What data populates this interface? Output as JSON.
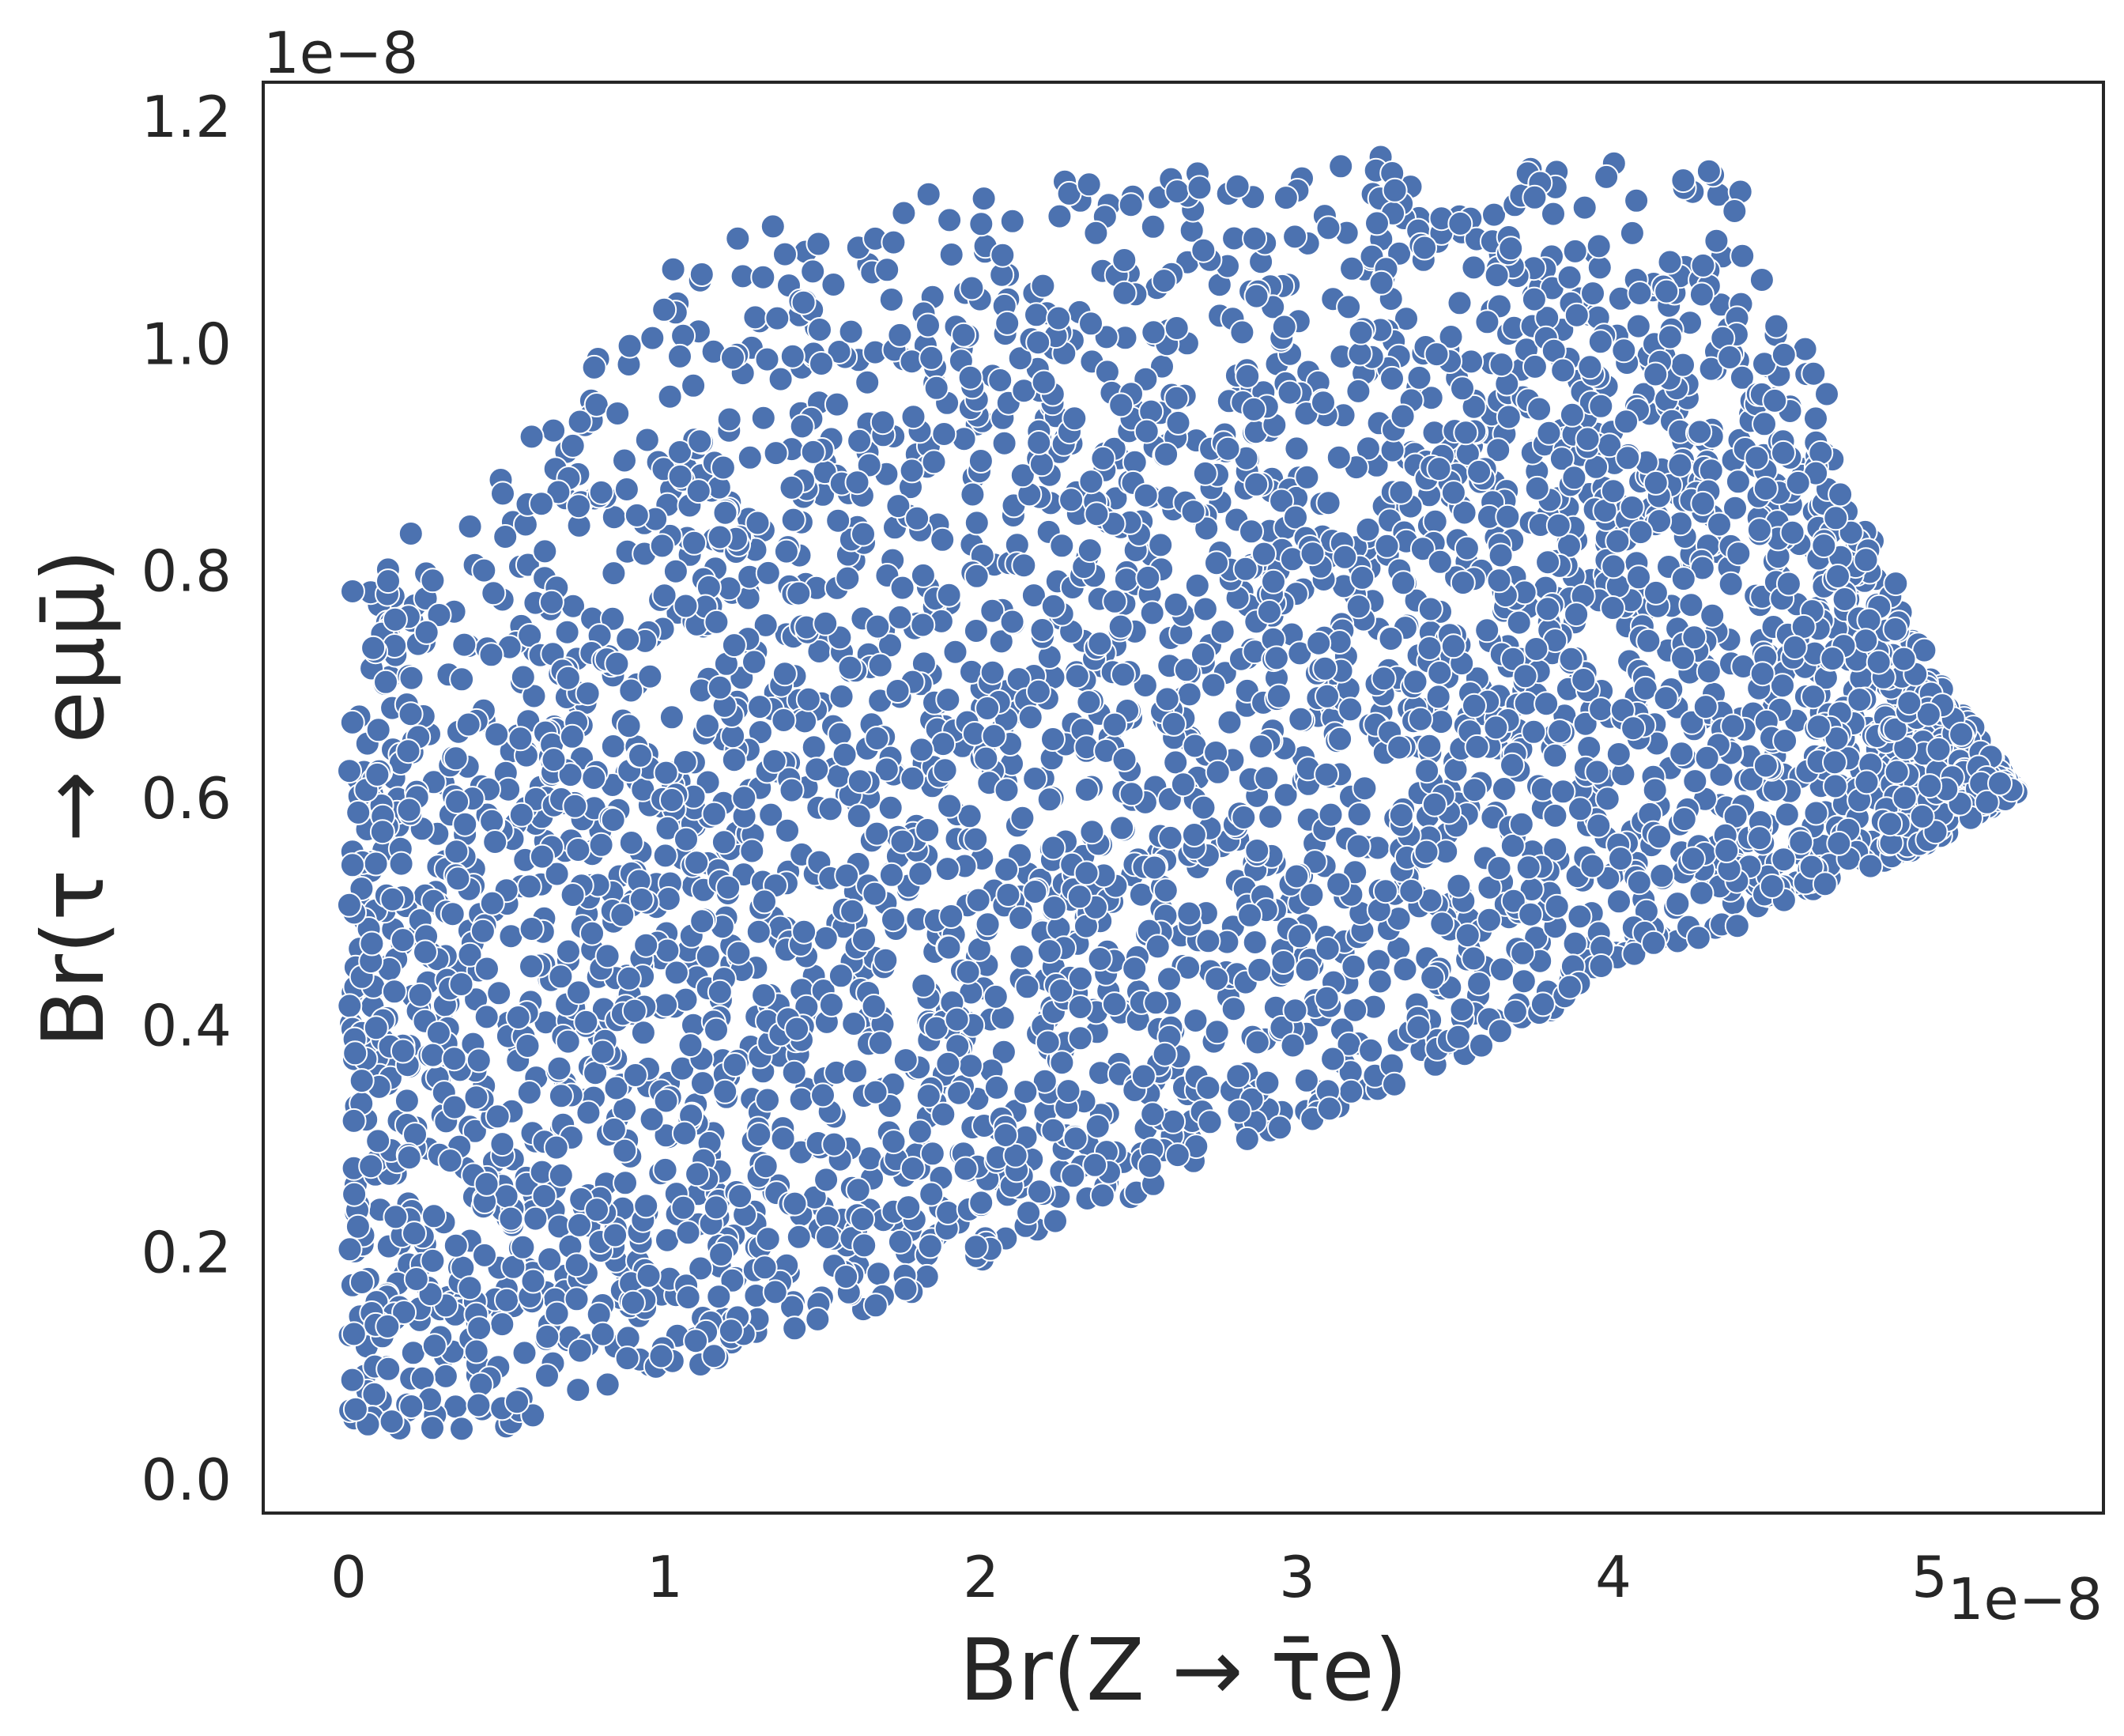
{
  "chart_data": {
    "type": "scatter",
    "title": "",
    "xlabel": "Br(Z → τ̄e)",
    "ylabel": "Br(τ → eμμ̄)",
    "xlim": [
      -2.7e-09,
      5.55e-08
    ],
    "ylim": [
      -3e-10,
      1.23e-08
    ],
    "x_offset_text": "1e−8",
    "y_offset_text": "1e−8",
    "x_ticks": [
      0,
      1e-08,
      2e-08,
      3e-08,
      4e-08,
      5e-08
    ],
    "x_tick_labels": [
      "0",
      "1",
      "2",
      "3",
      "4",
      "5"
    ],
    "y_ticks": [
      0,
      2e-09,
      4e-09,
      6e-09,
      8e-09,
      1e-08,
      1.2e-08
    ],
    "y_tick_labels": [
      "0.0",
      "0.2",
      "0.4",
      "0.6",
      "0.8",
      "1.0",
      "1.2"
    ],
    "grid": false,
    "legend": "none",
    "marker_color": "#4c72b0",
    "marker_edge_color": "#ffffff",
    "points_approx_count": 4200,
    "region_description": {
      "x_range": [
        0,
        5.28e-08
      ],
      "lower_boundary": [
        [
          0,
          4e-10
        ],
        [
          5e-09,
          4.5e-10
        ],
        [
          1e-08,
          9e-10
        ],
        [
          1.5e-08,
          1.3e-09
        ],
        [
          2e-08,
          1.9e-09
        ],
        [
          2.5e-08,
          2.5e-09
        ],
        [
          3e-08,
          3.1e-09
        ],
        [
          3.5e-08,
          3.7e-09
        ],
        [
          4e-08,
          4.4e-09
        ],
        [
          4.5e-08,
          5e-09
        ],
        [
          5e-08,
          5.6e-09
        ],
        [
          5.28e-08,
          6.05e-09
        ]
      ],
      "upper_boundary": [
        [
          0,
          8e-09
        ],
        [
          5e-09,
          9e-09
        ],
        [
          1e-08,
          1.08e-08
        ],
        [
          1.5e-08,
          1.12e-08
        ],
        [
          2e-08,
          1.14e-08
        ],
        [
          2.5e-08,
          1.15e-08
        ],
        [
          3e-08,
          1.165e-08
        ],
        [
          3.5e-08,
          1.17e-08
        ],
        [
          4e-08,
          1.17e-08
        ],
        [
          4.4e-08,
          1.15e-08
        ],
        [
          4.6e-08,
          1.02e-08
        ],
        [
          4.8e-08,
          8.5e-09
        ],
        [
          5e-08,
          7.2e-09
        ],
        [
          5.28e-08,
          6.05e-09
        ]
      ]
    }
  }
}
